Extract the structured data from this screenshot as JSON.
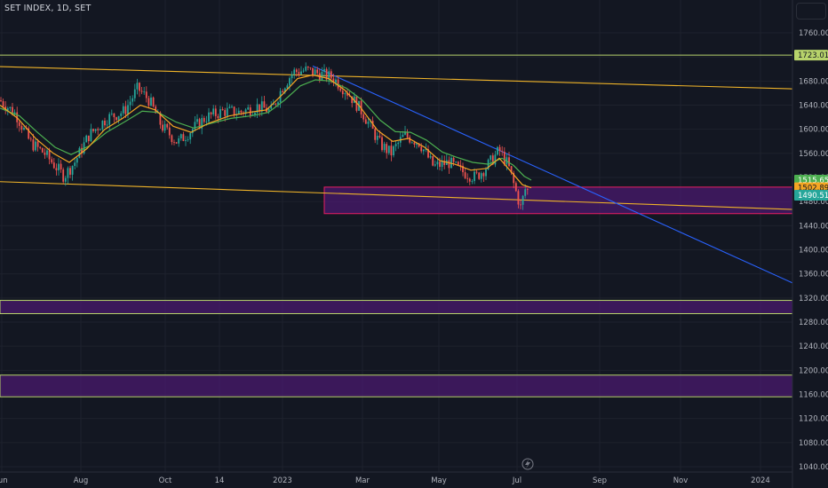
{
  "header": {
    "title": "SET INDEX, 1D, SET"
  },
  "colors": {
    "background": "#131722",
    "grid": "#1e222d",
    "up": "#26a69a",
    "down": "#ef5350",
    "ema_fast": "#f5a623",
    "ema_slow": "#4caf50",
    "channel": "#f0b429",
    "downtrend": "#2962ff",
    "zone_fill": "#4a1a6e",
    "zone_border": "#e91e63",
    "support_line": "#b7d36b"
  },
  "chart_data": {
    "type": "candlestick",
    "title": "SET INDEX, 1D, SET",
    "x_ticks": [
      "Jun",
      "Aug",
      "Oct",
      "14",
      "2023",
      "Mar",
      "May",
      "Jul",
      "Sep",
      "Nov",
      "2024"
    ],
    "y_ticks": [
      1040,
      1080,
      1120,
      1160,
      1200,
      1240,
      1280,
      1320,
      1360,
      1400,
      1440,
      1480,
      1520,
      1560,
      1600,
      1640,
      1680,
      1720,
      1760
    ],
    "ylim": [
      1030,
      1790
    ],
    "grid": true,
    "price_labels": [
      {
        "text": "1723.01",
        "value": 1723.01,
        "color": "#b7d36b",
        "text_color": "#131722"
      },
      {
        "text": "1515.65",
        "value": 1515.65,
        "color": "#4caf50",
        "text_color": "#ffffff"
      },
      {
        "text": "1502.89",
        "value": 1502.89,
        "color": "#f5a623",
        "text_color": "#131722"
      },
      {
        "text": "1490.51",
        "value": 1490.51,
        "color": "#26a69a",
        "text_color": "#ffffff"
      }
    ],
    "horizontal_lines": [
      {
        "value": 1723.01,
        "color": "#b7d36b"
      }
    ],
    "zones": [
      {
        "from_x": 365,
        "to_x": 892,
        "top": 1504,
        "bottom": 1460,
        "fill": "#4a1a6e",
        "border": "#e91e63"
      },
      {
        "from_x": 0,
        "to_x": 892,
        "top": 1316,
        "bottom": 1294,
        "fill": "#4a1a6e",
        "border": "#b7d36b"
      },
      {
        "from_x": 0,
        "to_x": 892,
        "top": 1192,
        "bottom": 1156,
        "fill": "#4a1a6e",
        "border": "#b7d36b"
      }
    ],
    "trend_lines": [
      {
        "name": "channel-upper",
        "x1": 0,
        "y1": 1704,
        "x2": 892,
        "y2": 1667,
        "color": "#f0b429"
      },
      {
        "name": "channel-lower",
        "x1": 0,
        "y1": 1513,
        "x2": 892,
        "y2": 1467,
        "color": "#f0b429"
      },
      {
        "name": "downtrend",
        "x1": 352,
        "y1": 1705,
        "x2": 892,
        "y2": 1345,
        "color": "#2962ff"
      }
    ],
    "price_path": [
      [
        0,
        1648
      ],
      [
        18,
        1625
      ],
      [
        34,
        1578
      ],
      [
        50,
        1560
      ],
      [
        72,
        1522
      ],
      [
        84,
        1545
      ],
      [
        100,
        1590
      ],
      [
        120,
        1618
      ],
      [
        140,
        1630
      ],
      [
        155,
        1668
      ],
      [
        168,
        1648
      ],
      [
        182,
        1605
      ],
      [
        200,
        1578
      ],
      [
        215,
        1598
      ],
      [
        232,
        1620
      ],
      [
        252,
        1630
      ],
      [
        270,
        1628
      ],
      [
        290,
        1638
      ],
      [
        305,
        1630
      ],
      [
        318,
        1670
      ],
      [
        330,
        1695
      ],
      [
        345,
        1698
      ],
      [
        360,
        1692
      ],
      [
        375,
        1685
      ],
      [
        392,
        1660
      ],
      [
        408,
        1628
      ],
      [
        428,
        1575
      ],
      [
        440,
        1560
      ],
      [
        455,
        1590
      ],
      [
        472,
        1578
      ],
      [
        488,
        1538
      ],
      [
        505,
        1545
      ],
      [
        520,
        1530
      ],
      [
        535,
        1520
      ],
      [
        548,
        1538
      ],
      [
        562,
        1565
      ],
      [
        572,
        1540
      ],
      [
        580,
        1500
      ],
      [
        586,
        1470
      ],
      [
        592,
        1505
      ],
      [
        596,
        1490
      ]
    ],
    "ema_fast_path": [
      [
        0,
        1640
      ],
      [
        20,
        1618
      ],
      [
        40,
        1585
      ],
      [
        60,
        1560
      ],
      [
        78,
        1545
      ],
      [
        98,
        1568
      ],
      [
        118,
        1600
      ],
      [
        138,
        1618
      ],
      [
        158,
        1640
      ],
      [
        175,
        1632
      ],
      [
        195,
        1605
      ],
      [
        215,
        1595
      ],
      [
        235,
        1610
      ],
      [
        258,
        1622
      ],
      [
        280,
        1628
      ],
      [
        300,
        1632
      ],
      [
        318,
        1658
      ],
      [
        335,
        1684
      ],
      [
        352,
        1690
      ],
      [
        370,
        1684
      ],
      [
        388,
        1665
      ],
      [
        405,
        1638
      ],
      [
        425,
        1598
      ],
      [
        442,
        1580
      ],
      [
        460,
        1585
      ],
      [
        478,
        1570
      ],
      [
        495,
        1548
      ],
      [
        512,
        1542
      ],
      [
        530,
        1532
      ],
      [
        548,
        1535
      ],
      [
        562,
        1552
      ],
      [
        575,
        1530
      ],
      [
        588,
        1508
      ],
      [
        598,
        1502.89
      ]
    ],
    "ema_slow_path": [
      [
        0,
        1635
      ],
      [
        22,
        1622
      ],
      [
        42,
        1595
      ],
      [
        62,
        1570
      ],
      [
        80,
        1558
      ],
      [
        100,
        1572
      ],
      [
        120,
        1595
      ],
      [
        140,
        1612
      ],
      [
        160,
        1630
      ],
      [
        178,
        1628
      ],
      [
        198,
        1612
      ],
      [
        218,
        1602
      ],
      [
        238,
        1610
      ],
      [
        260,
        1618
      ],
      [
        282,
        1622
      ],
      [
        302,
        1628
      ],
      [
        320,
        1648
      ],
      [
        338,
        1672
      ],
      [
        355,
        1682
      ],
      [
        372,
        1680
      ],
      [
        390,
        1668
      ],
      [
        408,
        1648
      ],
      [
        428,
        1615
      ],
      [
        445,
        1596
      ],
      [
        462,
        1595
      ],
      [
        480,
        1582
      ],
      [
        498,
        1562
      ],
      [
        515,
        1553
      ],
      [
        532,
        1545
      ],
      [
        550,
        1542
      ],
      [
        565,
        1552
      ],
      [
        578,
        1540
      ],
      [
        590,
        1522
      ],
      [
        598,
        1515.65
      ]
    ]
  }
}
